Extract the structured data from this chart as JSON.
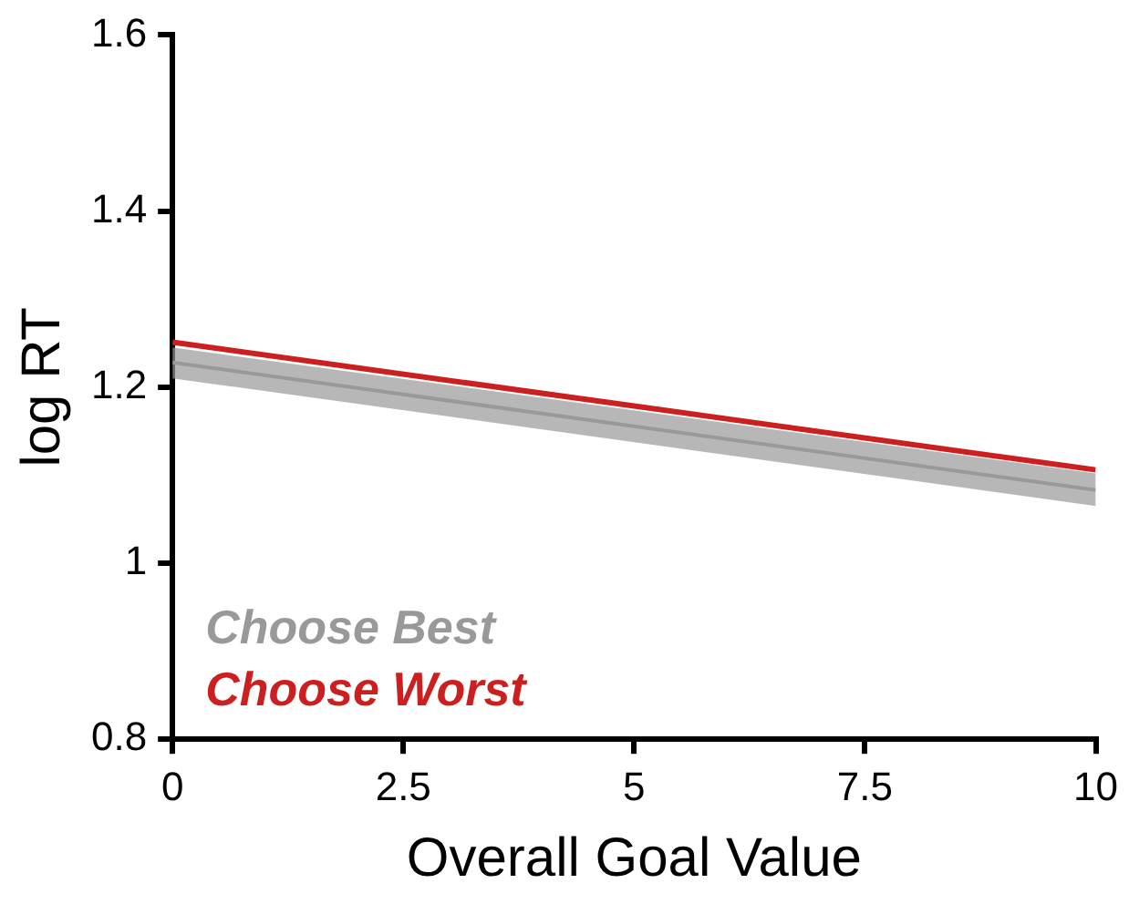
{
  "chart_data": {
    "type": "line",
    "xlabel": "Overall Goal Value",
    "ylabel": "log RT",
    "x": [
      0,
      10
    ],
    "xlim": [
      0,
      10
    ],
    "xticks": [
      0,
      {
        "value": 2.5,
        "label": "2.5"
      },
      5,
      {
        "value": 7.5,
        "label": "7.5"
      },
      10
    ],
    "ylim": [
      0.8,
      1.6
    ],
    "yticks": [
      0.8,
      1,
      1.2,
      1.4,
      1.6
    ],
    "grid": false,
    "legend": "bottom left",
    "marker": "none",
    "line_style": "solid",
    "series": [
      {
        "name": "Choose Best",
        "color": "#999999",
        "values": [
          1.228,
          1.083
        ],
        "lower": [
          1.21,
          1.065
        ],
        "upper": [
          1.245,
          1.102
        ]
      },
      {
        "name": "Choose Worst",
        "color": "#cc1f1f",
        "values": [
          1.251,
          1.106
        ]
      }
    ]
  }
}
